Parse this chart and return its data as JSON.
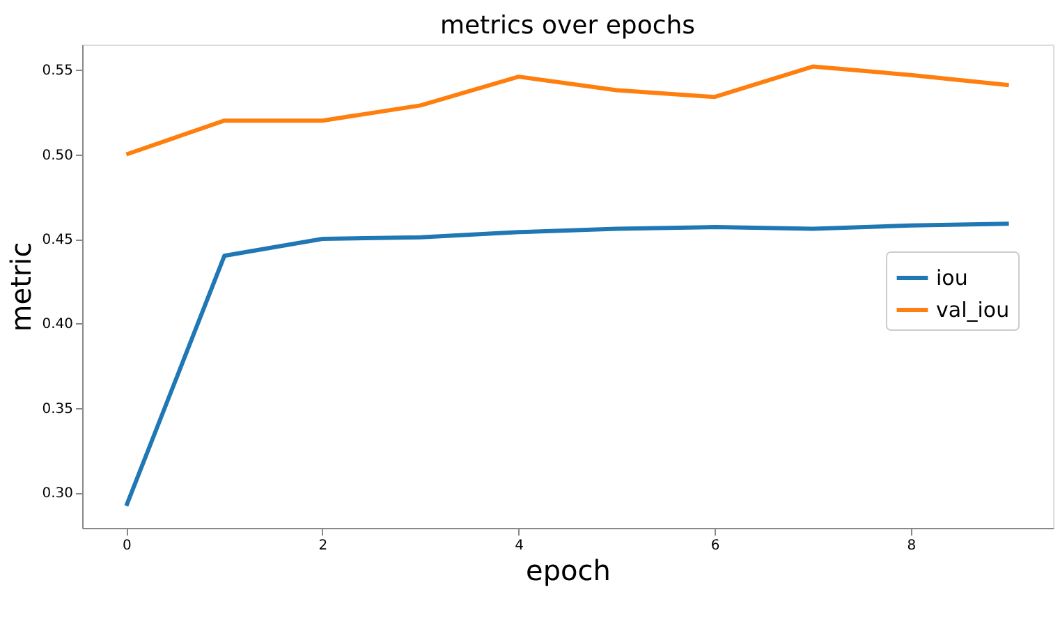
{
  "chart_data": {
    "type": "line",
    "title": "metrics over epochs",
    "xlabel": "epoch",
    "ylabel": "metric",
    "x": [
      0,
      1,
      2,
      3,
      4,
      5,
      6,
      7,
      8,
      9
    ],
    "series": [
      {
        "name": "iou",
        "color": "#1f77b4",
        "values": [
          0.292,
          0.44,
          0.45,
          0.451,
          0.454,
          0.456,
          0.457,
          0.456,
          0.458,
          0.459
        ]
      },
      {
        "name": "val_iou",
        "color": "#ff7f0e",
        "values": [
          0.5,
          0.52,
          0.52,
          0.529,
          0.546,
          0.538,
          0.534,
          0.552,
          0.547,
          0.541
        ]
      }
    ],
    "xlim": [
      -0.45,
      9.45
    ],
    "ylim": [
      0.279,
      0.565
    ],
    "xticks": [
      0,
      2,
      4,
      6,
      8
    ],
    "yticks": [
      {
        "value": 0.3,
        "label": "0.30"
      },
      0.35,
      {
        "value": 0.4,
        "label": "0.40"
      },
      0.45,
      {
        "value": 0.5,
        "label": "0.50"
      },
      0.55
    ],
    "grid": false,
    "legend": "center right",
    "marker": "none",
    "line_style": "solid"
  }
}
